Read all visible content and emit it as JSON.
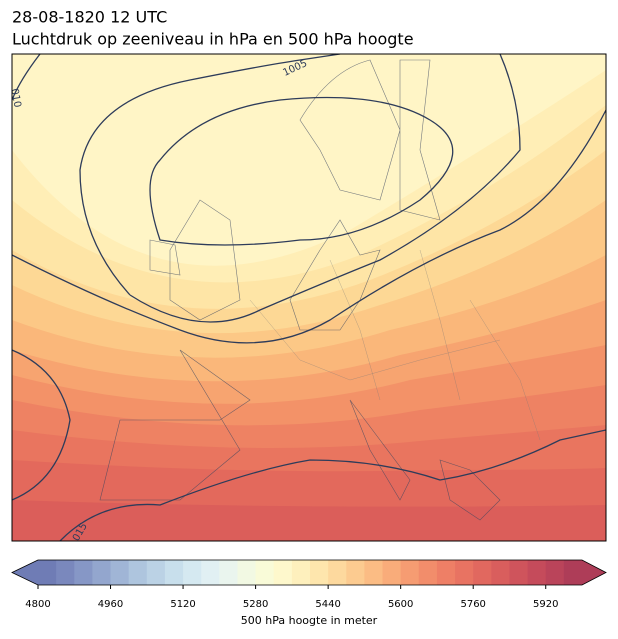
{
  "header": {
    "date": "28-08-1820 12 UTC",
    "title": "Luchtdruk op zeeniveau in hPa en 500 hPa hoogte"
  },
  "map": {
    "isobar_labels": [
      "1005",
      "010",
      "015"
    ]
  },
  "colorbar": {
    "label": "500 hPa hoogte in meter",
    "lim": [
      4800,
      6000
    ],
    "ticks": [
      4800,
      4960,
      5120,
      5280,
      5440,
      5600,
      5760,
      5920
    ],
    "colors": [
      "#6f7cb5",
      "#7a88bd",
      "#8697c6",
      "#93a6ce",
      "#a0b5d6",
      "#aec5de",
      "#bbd2e5",
      "#c8dfec",
      "#d5e9f1",
      "#e1f0f3",
      "#eaf5ee",
      "#f2f9e3",
      "#f9fbd8",
      "#fef8cc",
      "#fef0bd",
      "#fee6ad",
      "#fdd99e",
      "#fccb90",
      "#fbbc84",
      "#f9ac7a",
      "#f69c72",
      "#f28d6b",
      "#ee7f66",
      "#e87362",
      "#e1685f",
      "#d95e5d",
      "#cf545c",
      "#c54b5b",
      "#ba445a",
      "#ae3d58"
    ]
  }
}
